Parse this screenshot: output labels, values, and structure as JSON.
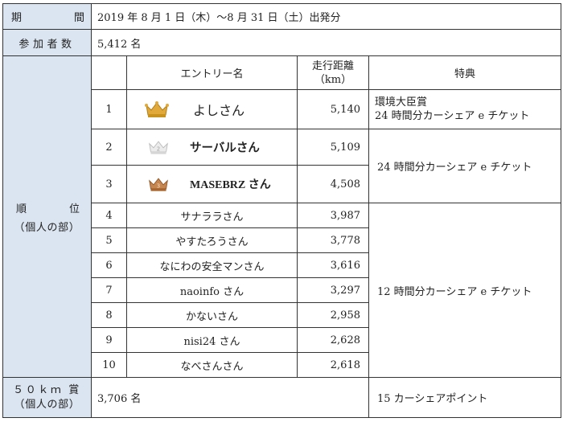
{
  "period": {
    "label_a": "期",
    "label_b": "間",
    "value": "2019 年 8 月 1 日（木）～8 月 31 日（土）出発分"
  },
  "participants": {
    "label": "参加者数",
    "value": "5,412 名"
  },
  "ranking": {
    "label_a": "順",
    "label_b": "位",
    "sublabel": "（個人の部）",
    "headers": {
      "rank": "",
      "name": "エントリー名",
      "distance": "走行距離\n（km）",
      "reward": "特典"
    },
    "rows": [
      {
        "rank": "1",
        "name": "よしさん",
        "distance": "5,140",
        "crown": "gold"
      },
      {
        "rank": "2",
        "name": "サーバルさん",
        "distance": "5,109",
        "crown": "silver"
      },
      {
        "rank": "3",
        "name": "MASEBRZ さん",
        "distance": "4,508",
        "crown": "bronze"
      },
      {
        "rank": "4",
        "name": "サナララさん",
        "distance": "3,987"
      },
      {
        "rank": "5",
        "name": "やすたろうさん",
        "distance": "3,778"
      },
      {
        "rank": "6",
        "name": "なにわの安全マンさん",
        "distance": "3,616"
      },
      {
        "rank": "7",
        "name": "naoinfo さん",
        "distance": "3,297"
      },
      {
        "rank": "8",
        "name": "かないさん",
        "distance": "2,958"
      },
      {
        "rank": "9",
        "name": "nisi24 さん",
        "distance": "2,628"
      },
      {
        "rank": "10",
        "name": "なべさんさん",
        "distance": "2,618"
      }
    ],
    "rewards": {
      "first_line1": "環境大臣賞",
      "first_line2": "24 時間分カーシェア e チケット",
      "second_third": "24 時間分カーシェア e チケット",
      "fourth_to_tenth": "12 時間分カーシェア e チケット"
    }
  },
  "prize50": {
    "label": "５０ｋｍ 賞",
    "sublabel": "（個人の部）",
    "count": "3,706 名",
    "reward": "15 カーシェアポイント"
  },
  "colors": {
    "header_bg": "#dbe5f1",
    "gold": "#d4a017",
    "silver": "#c8c8c8",
    "bronze": "#b0703a"
  }
}
